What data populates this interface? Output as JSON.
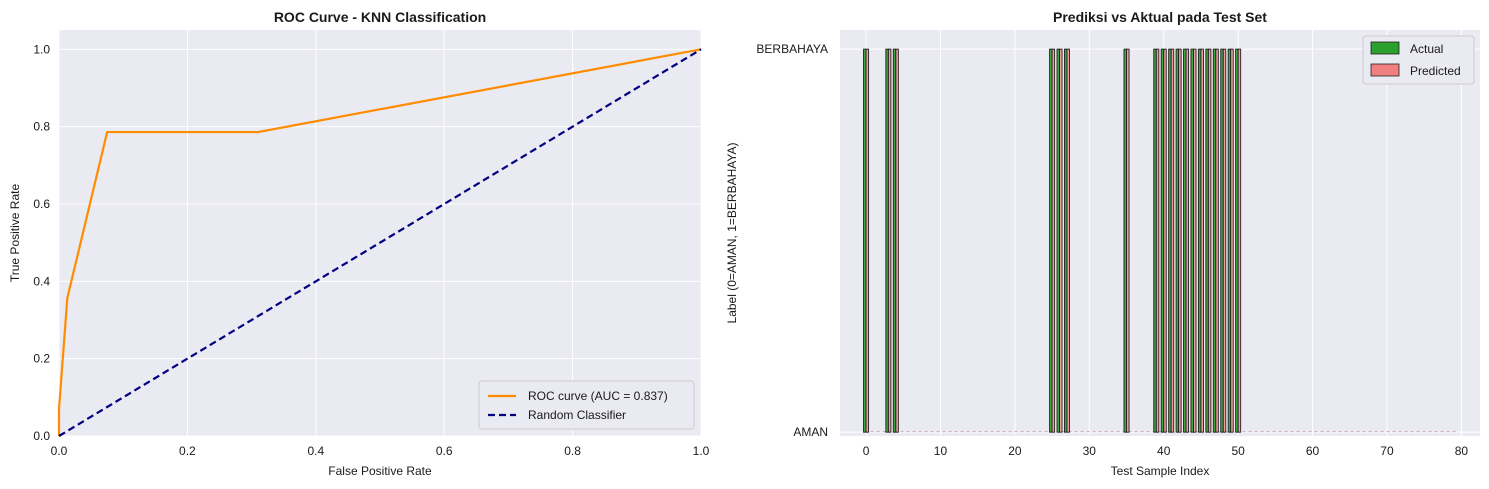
{
  "chart_data": [
    {
      "type": "line",
      "title": "ROC Curve - KNN Classification",
      "xlabel": "False Positive Rate",
      "ylabel": "True Positive Rate",
      "xlim": [
        0,
        1
      ],
      "ylim": [
        0,
        1.05
      ],
      "xticks": [
        "0.0",
        "0.2",
        "0.4",
        "0.6",
        "0.8",
        "1.0"
      ],
      "yticks": [
        "0.0",
        "0.2",
        "0.4",
        "0.6",
        "0.8",
        "1.0"
      ],
      "grid": true,
      "legend_position": "lower-right",
      "series": [
        {
          "name": "ROC curve (AUC = 0.837)",
          "color": "#ff8c00",
          "style": "solid",
          "x": [
            0.0,
            0.0,
            0.013,
            0.075,
            0.31,
            1.0
          ],
          "y": [
            0.0,
            0.07,
            0.357,
            0.786,
            0.786,
            1.0
          ]
        },
        {
          "name": "Random Classifier",
          "color": "#000080",
          "style": "dashed",
          "x": [
            0,
            1
          ],
          "y": [
            0,
            1
          ]
        }
      ]
    },
    {
      "type": "bar",
      "title": "Prediksi vs Aktual pada Test Set",
      "xlabel": "Test Sample Index",
      "ylabel": "Label (0=AMAN, 1=BERBAHAYA)",
      "xlim": [
        -3.5,
        82.5
      ],
      "ylim": [
        -0.01,
        1.05
      ],
      "xticks": [
        "0",
        "10",
        "20",
        "30",
        "40",
        "50",
        "60",
        "70",
        "80"
      ],
      "ytick_labels": [
        {
          "value": 0,
          "label": "AMAN"
        },
        {
          "value": 1,
          "label": "BERBAHAYA"
        }
      ],
      "grid": true,
      "legend_position": "upper-right",
      "n_samples": 80,
      "series": [
        {
          "name": "Actual",
          "color": "#2ca02c",
          "x": [
            0,
            3,
            4,
            25,
            26,
            27,
            35,
            39,
            40,
            41,
            42,
            43,
            44,
            45,
            46,
            47,
            48,
            49,
            50
          ],
          "values": [
            1,
            1,
            1,
            1,
            1,
            1,
            1,
            1,
            1,
            1,
            1,
            1,
            1,
            1,
            1,
            1,
            1,
            1,
            1
          ]
        },
        {
          "name": "Predicted",
          "color": "#f08080",
          "x": [
            0,
            3,
            4,
            25,
            26,
            27,
            35,
            39,
            40,
            41,
            42,
            43,
            44,
            45,
            46,
            47,
            48,
            49,
            50
          ],
          "values": [
            1,
            1,
            1,
            1,
            1,
            1,
            1,
            1,
            1,
            1,
            1,
            1,
            1,
            1,
            1,
            1,
            1,
            1,
            1
          ]
        }
      ]
    }
  ]
}
